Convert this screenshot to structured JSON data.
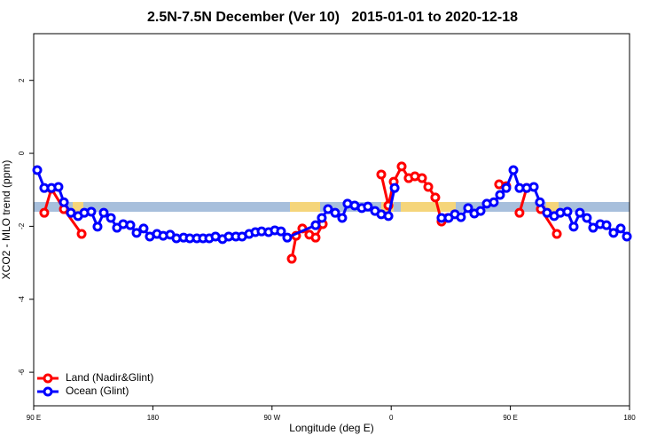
{
  "chart_data": {
    "type": "line",
    "title": "2.5N-7.5N December (Ver 10)   2015-01-01 to 2020-12-18",
    "xlabel": "Longitude (deg E)",
    "ylabel": "XCO2 - MLO trend (ppm)",
    "xlim": [
      -270,
      180
    ],
    "ylim": [
      -6.92,
      3.28
    ],
    "xticks": [
      {
        "value": -270,
        "label": "90 E"
      },
      {
        "value": -180,
        "label": "180"
      },
      {
        "value": -90,
        "label": "90 W"
      },
      0,
      {
        "value": 90,
        "label": "90 E"
      },
      180
    ],
    "yticks": [
      2,
      0,
      -2,
      -4,
      -6
    ],
    "legend": "bottomleft",
    "series": [
      {
        "name": "Land (Nadir&Glint)",
        "color": "#ff0000",
        "x": [
          -262.0,
          -256.6,
          -247.2,
          -233.8,
          null,
          -75.1,
          -71.8,
          -67.1,
          -61.8,
          -57.1,
          -51.7,
          null,
          -7.5,
          -2.1,
          1.9,
          7.9,
          13.2,
          17.9,
          23.3,
          28.0,
          33.3,
          38.0,
          42.7,
          null,
          81.5,
          86.9,
          null,
          96.9,
          102.3,
          null,
          113.0,
          125.1
        ],
        "values": [
          -1.63,
          -0.97,
          -1.53,
          -2.21,
          null,
          -2.89,
          -2.26,
          -2.06,
          -2.23,
          -2.31,
          -1.94,
          null,
          -0.58,
          -1.43,
          -0.78,
          -0.36,
          -0.68,
          -0.63,
          -0.68,
          -0.92,
          -1.21,
          -1.87,
          -1.77,
          null,
          -0.85,
          -0.9,
          null,
          -1.63,
          -0.95,
          null,
          -1.53,
          -2.21
        ]
      },
      {
        "name": "Ocean (Glint)",
        "color": "#0000ff",
        "x": [
          -267.3,
          -262.0,
          -256.6,
          -251.3,
          -247.2,
          -241.9,
          -236.5,
          -231.8,
          -226.5,
          -221.8,
          -217.1,
          -211.7,
          -207.1,
          -202.4,
          -197.0,
          -192.3,
          -187.0,
          -182.3,
          -176.9,
          -172.2,
          -166.9,
          -162.2,
          -156.8,
          -152.1,
          -146.8,
          -142.1,
          -137.4,
          -132.7,
          -127.4,
          -122.7,
          -117.3,
          -112.6,
          -107.3,
          -102.6,
          -97.9,
          -92.6,
          -87.9,
          -83.2,
          -78.5,
          -57.1,
          -52.4,
          -47.7,
          -42.3,
          -37.0,
          -33.0,
          -27.6,
          -22.2,
          -17.6,
          -12.2,
          -7.5,
          -2.1,
          2.6,
          null,
          38.0,
          43.4,
          48.1,
          52.7,
          58.1,
          62.8,
          67.5,
          72.2,
          77.5,
          82.2,
          86.9,
          92.3,
          96.9,
          102.3,
          107.7,
          112.3,
          117.7,
          123.1,
          127.7,
          133.1,
          137.8,
          142.5,
          147.8,
          152.5,
          157.9,
          162.6,
          167.9,
          173.3,
          178.0
        ],
        "values": [
          -0.46,
          -0.95,
          -0.95,
          -0.92,
          -1.34,
          -1.63,
          -1.72,
          -1.63,
          -1.6,
          -2.01,
          -1.63,
          -1.77,
          -2.04,
          -1.94,
          -1.97,
          -2.18,
          -2.06,
          -2.28,
          -2.21,
          -2.26,
          -2.23,
          -2.33,
          -2.31,
          -2.33,
          -2.33,
          -2.33,
          -2.33,
          -2.28,
          -2.35,
          -2.28,
          -2.28,
          -2.28,
          -2.21,
          -2.16,
          -2.14,
          -2.16,
          -2.11,
          -2.14,
          -2.31,
          -1.97,
          -1.77,
          -1.53,
          -1.63,
          -1.77,
          -1.38,
          -1.43,
          -1.5,
          -1.46,
          -1.58,
          -1.67,
          -1.72,
          -0.95,
          null,
          -1.77,
          -1.77,
          -1.67,
          -1.75,
          -1.5,
          -1.65,
          -1.58,
          -1.38,
          -1.34,
          -1.14,
          -0.95,
          -0.46,
          -0.95,
          -0.95,
          -0.92,
          -1.34,
          -1.63,
          -1.72,
          -1.63,
          -1.6,
          -2.01,
          -1.63,
          -1.77,
          -2.04,
          -1.94,
          -1.97,
          -2.18,
          -2.06,
          -2.28
        ]
      }
    ]
  }
}
